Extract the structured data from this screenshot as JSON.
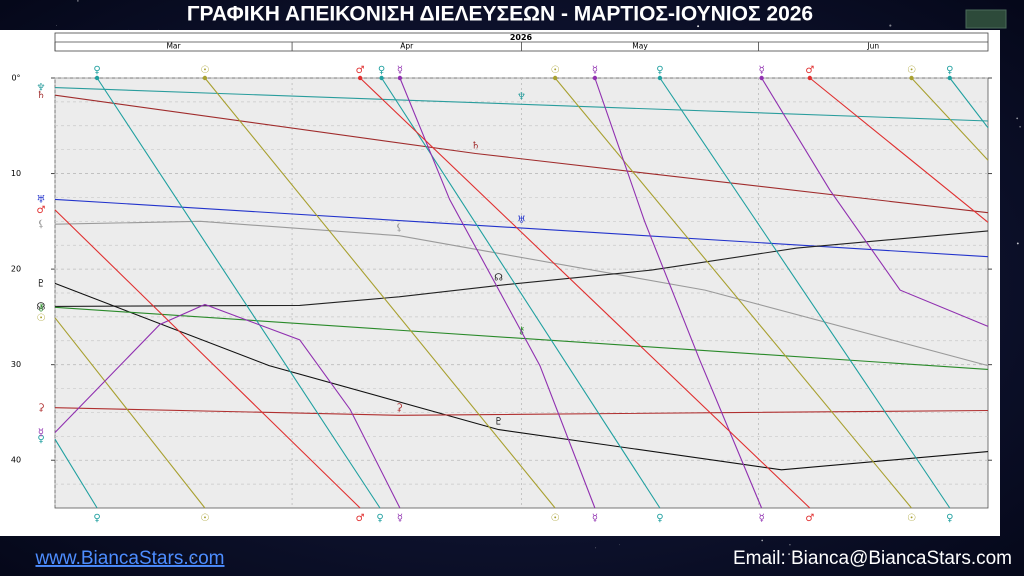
{
  "chart_data": {
    "type": "line",
    "title": "ΓΡΑΦΙΚΗ ΑΠΕΙΚΟΝΙΣΗ ΔΙΕΛΕΥΣΕΩΝ - ΜΑΡΤΙΟΣ-ΙΟΥΝΙΟΣ 2026",
    "year_label": "2026",
    "xlim": [
      0,
      122
    ],
    "xticks": [
      {
        "value": 0,
        "label": "Mar"
      },
      {
        "value": 31,
        "label": "Apr"
      },
      {
        "value": 61,
        "label": "May"
      },
      {
        "value": 92,
        "label": "Jun"
      }
    ],
    "ylim": [
      0,
      45
    ],
    "yticks": [
      {
        "value": 0,
        "label": "0°"
      },
      10,
      20,
      30,
      40
    ],
    "minor_yticks": [
      2.5,
      5,
      7.5,
      12.5,
      15,
      17.5,
      22.5,
      25,
      27.5,
      32.5,
      35,
      37.5,
      42.5
    ],
    "grid": true,
    "series": [
      {
        "name": "♆",
        "color": "#2a9d9d",
        "x": [
          0,
          122
        ],
        "values": [
          1.0,
          4.5
        ]
      },
      {
        "name": "♄",
        "color": "#a02c2c",
        "x": [
          0,
          55,
          122
        ],
        "values": [
          1.8,
          7.9,
          14.1
        ]
      },
      {
        "name": "♅",
        "color": "#2233cc",
        "x": [
          0,
          122
        ],
        "values": [
          12.7,
          18.7
        ]
      },
      {
        "name": "⚸",
        "color": "#9a9a9a",
        "x": [
          0,
          19,
          45,
          85,
          122
        ],
        "values": [
          15.3,
          15.0,
          16.5,
          22.2,
          30.1
        ]
      },
      {
        "name": "☊",
        "color": "#222222",
        "x": [
          0,
          32,
          45,
          58,
          78,
          97,
          122
        ],
        "values": [
          23.9,
          23.8,
          22.9,
          21.7,
          20.1,
          17.8,
          16.0
        ]
      },
      {
        "name": "♇",
        "color": "#111111",
        "x": [
          0,
          28,
          58,
          95,
          122
        ],
        "values": [
          21.5,
          30.1,
          36.8,
          41.0,
          39.1
        ]
      },
      {
        "name": "⚷",
        "color": "#2a8a2a",
        "x": [
          0,
          122
        ],
        "values": [
          24.0,
          30.5
        ]
      },
      {
        "name": "⚳",
        "color": "#b03030",
        "x": [
          0,
          45,
          122
        ],
        "values": [
          34.5,
          35.3,
          34.8
        ]
      },
      {
        "name": "☉",
        "color": "#a8a030",
        "x": [
          0,
          19.6,
          null,
          19.6,
          65.4,
          null,
          65.4,
          112,
          null,
          112,
          122
        ],
        "values": [
          25.1,
          45,
          null,
          0,
          45,
          null,
          0,
          45,
          null,
          0,
          8.6
        ]
      },
      {
        "name": "♀",
        "color": "#20a0a0",
        "x": [
          0,
          5.5,
          null,
          5.5,
          42.5,
          null,
          42.7,
          79.1,
          null,
          79.1,
          117,
          null,
          117,
          122
        ],
        "values": [
          37.8,
          45,
          null,
          0,
          45,
          null,
          0,
          45,
          null,
          0,
          45,
          null,
          0,
          5.2
        ]
      },
      {
        "name": "☿",
        "color": "#9030b0",
        "x": [
          0,
          13.7,
          19.6,
          32,
          38.6,
          45.1,
          null,
          45.1,
          51.6,
          63.4,
          70.6,
          null,
          70.6,
          77.1,
          84.3,
          92.4,
          null,
          92.4,
          101.3,
          110.5,
          122
        ],
        "values": [
          37.1,
          25.8,
          23.7,
          27.4,
          34.7,
          45,
          null,
          0,
          12.7,
          30.1,
          45,
          null,
          0,
          15,
          29.5,
          45,
          null,
          0,
          11.7,
          22.2,
          26
        ]
      },
      {
        "name": "♂",
        "color": "#e03030",
        "x": [
          0,
          39.9,
          null,
          39.9,
          98.7,
          null,
          98.7,
          122
        ],
        "values": [
          13.8,
          45,
          null,
          0,
          45,
          null,
          0,
          15.1
        ]
      }
    ]
  },
  "footer": {
    "website": "www.BiancaStars.com",
    "email": "Email: Bianca@BiancaStars.com"
  }
}
